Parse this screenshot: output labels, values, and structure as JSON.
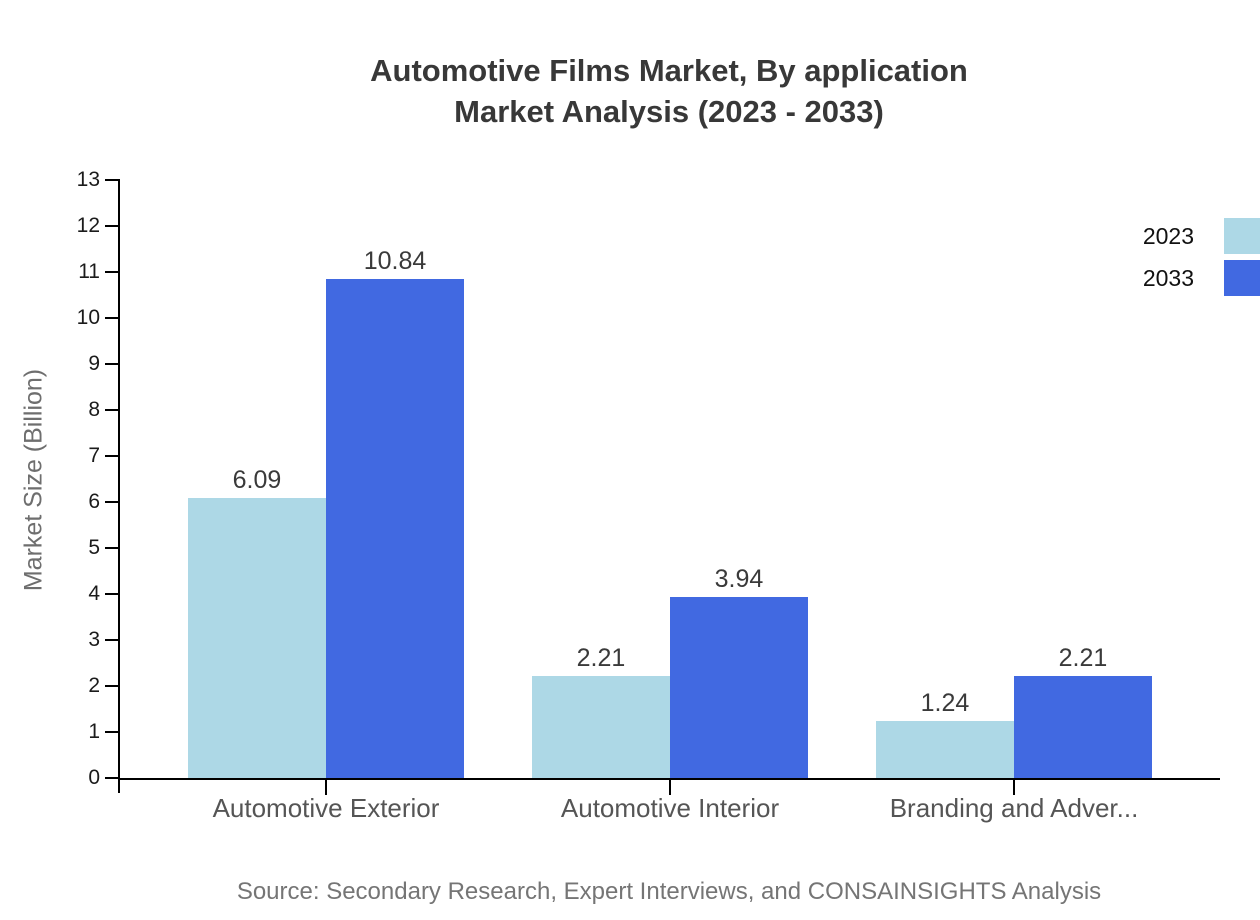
{
  "title": {
    "line1": "Automotive Films Market, By application",
    "line2": "Market Analysis (2023 - 2033)"
  },
  "y_axis": {
    "label": "Market Size (Billion)",
    "ticks": [
      0,
      1,
      2,
      3,
      4,
      5,
      6,
      7,
      8,
      9,
      10,
      11,
      12,
      13
    ]
  },
  "legend": [
    {
      "label": "2023",
      "color": "#ADD8E6"
    },
    {
      "label": "2033",
      "color": "#4169E1"
    }
  ],
  "source": {
    "text": "Source: Secondary Research, Expert Interviews, and CONSAINSIGHTS Analysis"
  },
  "chart_data": {
    "type": "bar",
    "title": "Automotive Films Market, By application Market Analysis (2023 - 2033)",
    "categories": [
      "Automotive Exterior",
      "Automotive Interior",
      "Branding and Adver..."
    ],
    "series": [
      {
        "name": "2023",
        "color": "#ADD8E6",
        "values": [
          6.09,
          2.21,
          1.24
        ]
      },
      {
        "name": "2033",
        "color": "#4169E1",
        "values": [
          10.84,
          3.94,
          2.21
        ]
      }
    ],
    "xlabel": "",
    "ylabel": "Market Size (Billion)",
    "ylim": [
      0,
      13
    ],
    "grid": false,
    "legend_position": "top-right",
    "value_labels": true
  }
}
